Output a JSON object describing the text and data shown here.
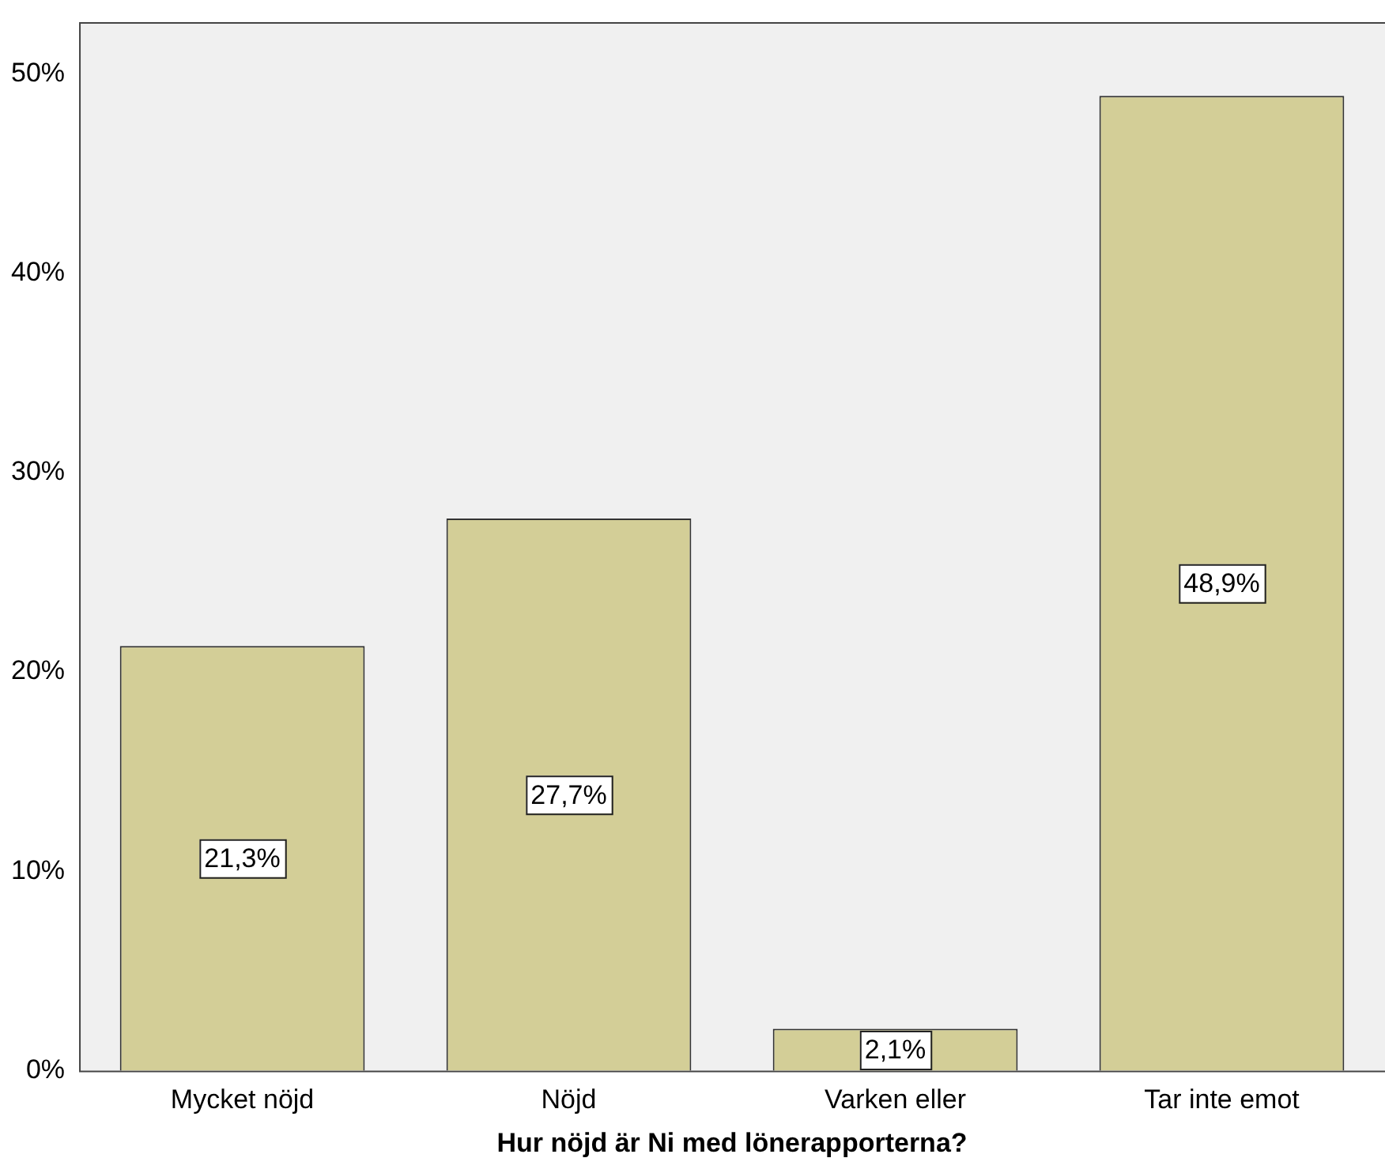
{
  "chart_data": {
    "type": "bar",
    "xlabel": "Hur nöjd är Ni med lönerapporterna?",
    "categories": [
      "Mycket nöjd",
      "Nöjd",
      "Varken eller",
      "Tar inte emot"
    ],
    "values": [
      21.3,
      27.7,
      2.1,
      48.9
    ],
    "value_labels": [
      "21,3%",
      "27,7%",
      "2,1%",
      "48,9%"
    ],
    "color": "#d3ce97",
    "ylim": [
      0,
      52.6
    ],
    "yticks": [
      {
        "value": 0,
        "label": "0%"
      },
      {
        "value": 10,
        "label": "10%"
      },
      {
        "value": 20,
        "label": "20%"
      },
      {
        "value": 30,
        "label": "30%"
      },
      {
        "value": 40,
        "label": "40%"
      },
      {
        "value": 50,
        "label": "50%"
      }
    ],
    "grid": false,
    "legend": false
  }
}
